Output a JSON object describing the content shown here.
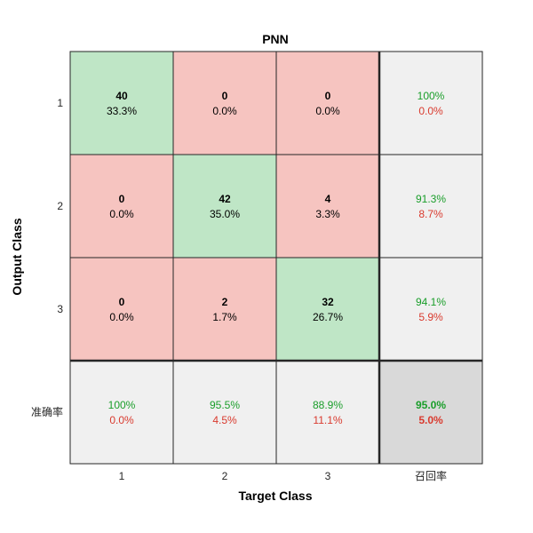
{
  "chart_data": {
    "type": "heatmap",
    "title": "PNN",
    "xlabel": "Target Class",
    "ylabel": "Output Class",
    "row_labels": [
      "1",
      "2",
      "3"
    ],
    "col_labels": [
      "1",
      "2",
      "3"
    ],
    "summary_col_label": "召回率",
    "summary_row_label": "准确率",
    "cells": [
      [
        {
          "count": "40",
          "pct": "33.3%"
        },
        {
          "count": "0",
          "pct": "0.0%"
        },
        {
          "count": "0",
          "pct": "0.0%"
        }
      ],
      [
        {
          "count": "0",
          "pct": "0.0%"
        },
        {
          "count": "42",
          "pct": "35.0%"
        },
        {
          "count": "4",
          "pct": "3.3%"
        }
      ],
      [
        {
          "count": "0",
          "pct": "0.0%"
        },
        {
          "count": "2",
          "pct": "1.7%"
        },
        {
          "count": "32",
          "pct": "26.7%"
        }
      ]
    ],
    "row_summary": [
      {
        "good": "100%",
        "bad": "0.0%"
      },
      {
        "good": "91.3%",
        "bad": "8.7%"
      },
      {
        "good": "94.1%",
        "bad": "5.9%"
      }
    ],
    "col_summary": [
      {
        "good": "100%",
        "bad": "0.0%"
      },
      {
        "good": "95.5%",
        "bad": "4.5%"
      },
      {
        "good": "88.9%",
        "bad": "11.1%"
      }
    ],
    "overall": {
      "good": "95.0%",
      "bad": "5.0%"
    },
    "colors": {
      "correct": "#bfe6c6",
      "incorrect": "#f6c4c0",
      "summary": "#f0f0f0",
      "overall": "#d9d9d9",
      "good_text": "#1a9e2a",
      "bad_text": "#d93a2e",
      "grid": "#262626"
    }
  }
}
